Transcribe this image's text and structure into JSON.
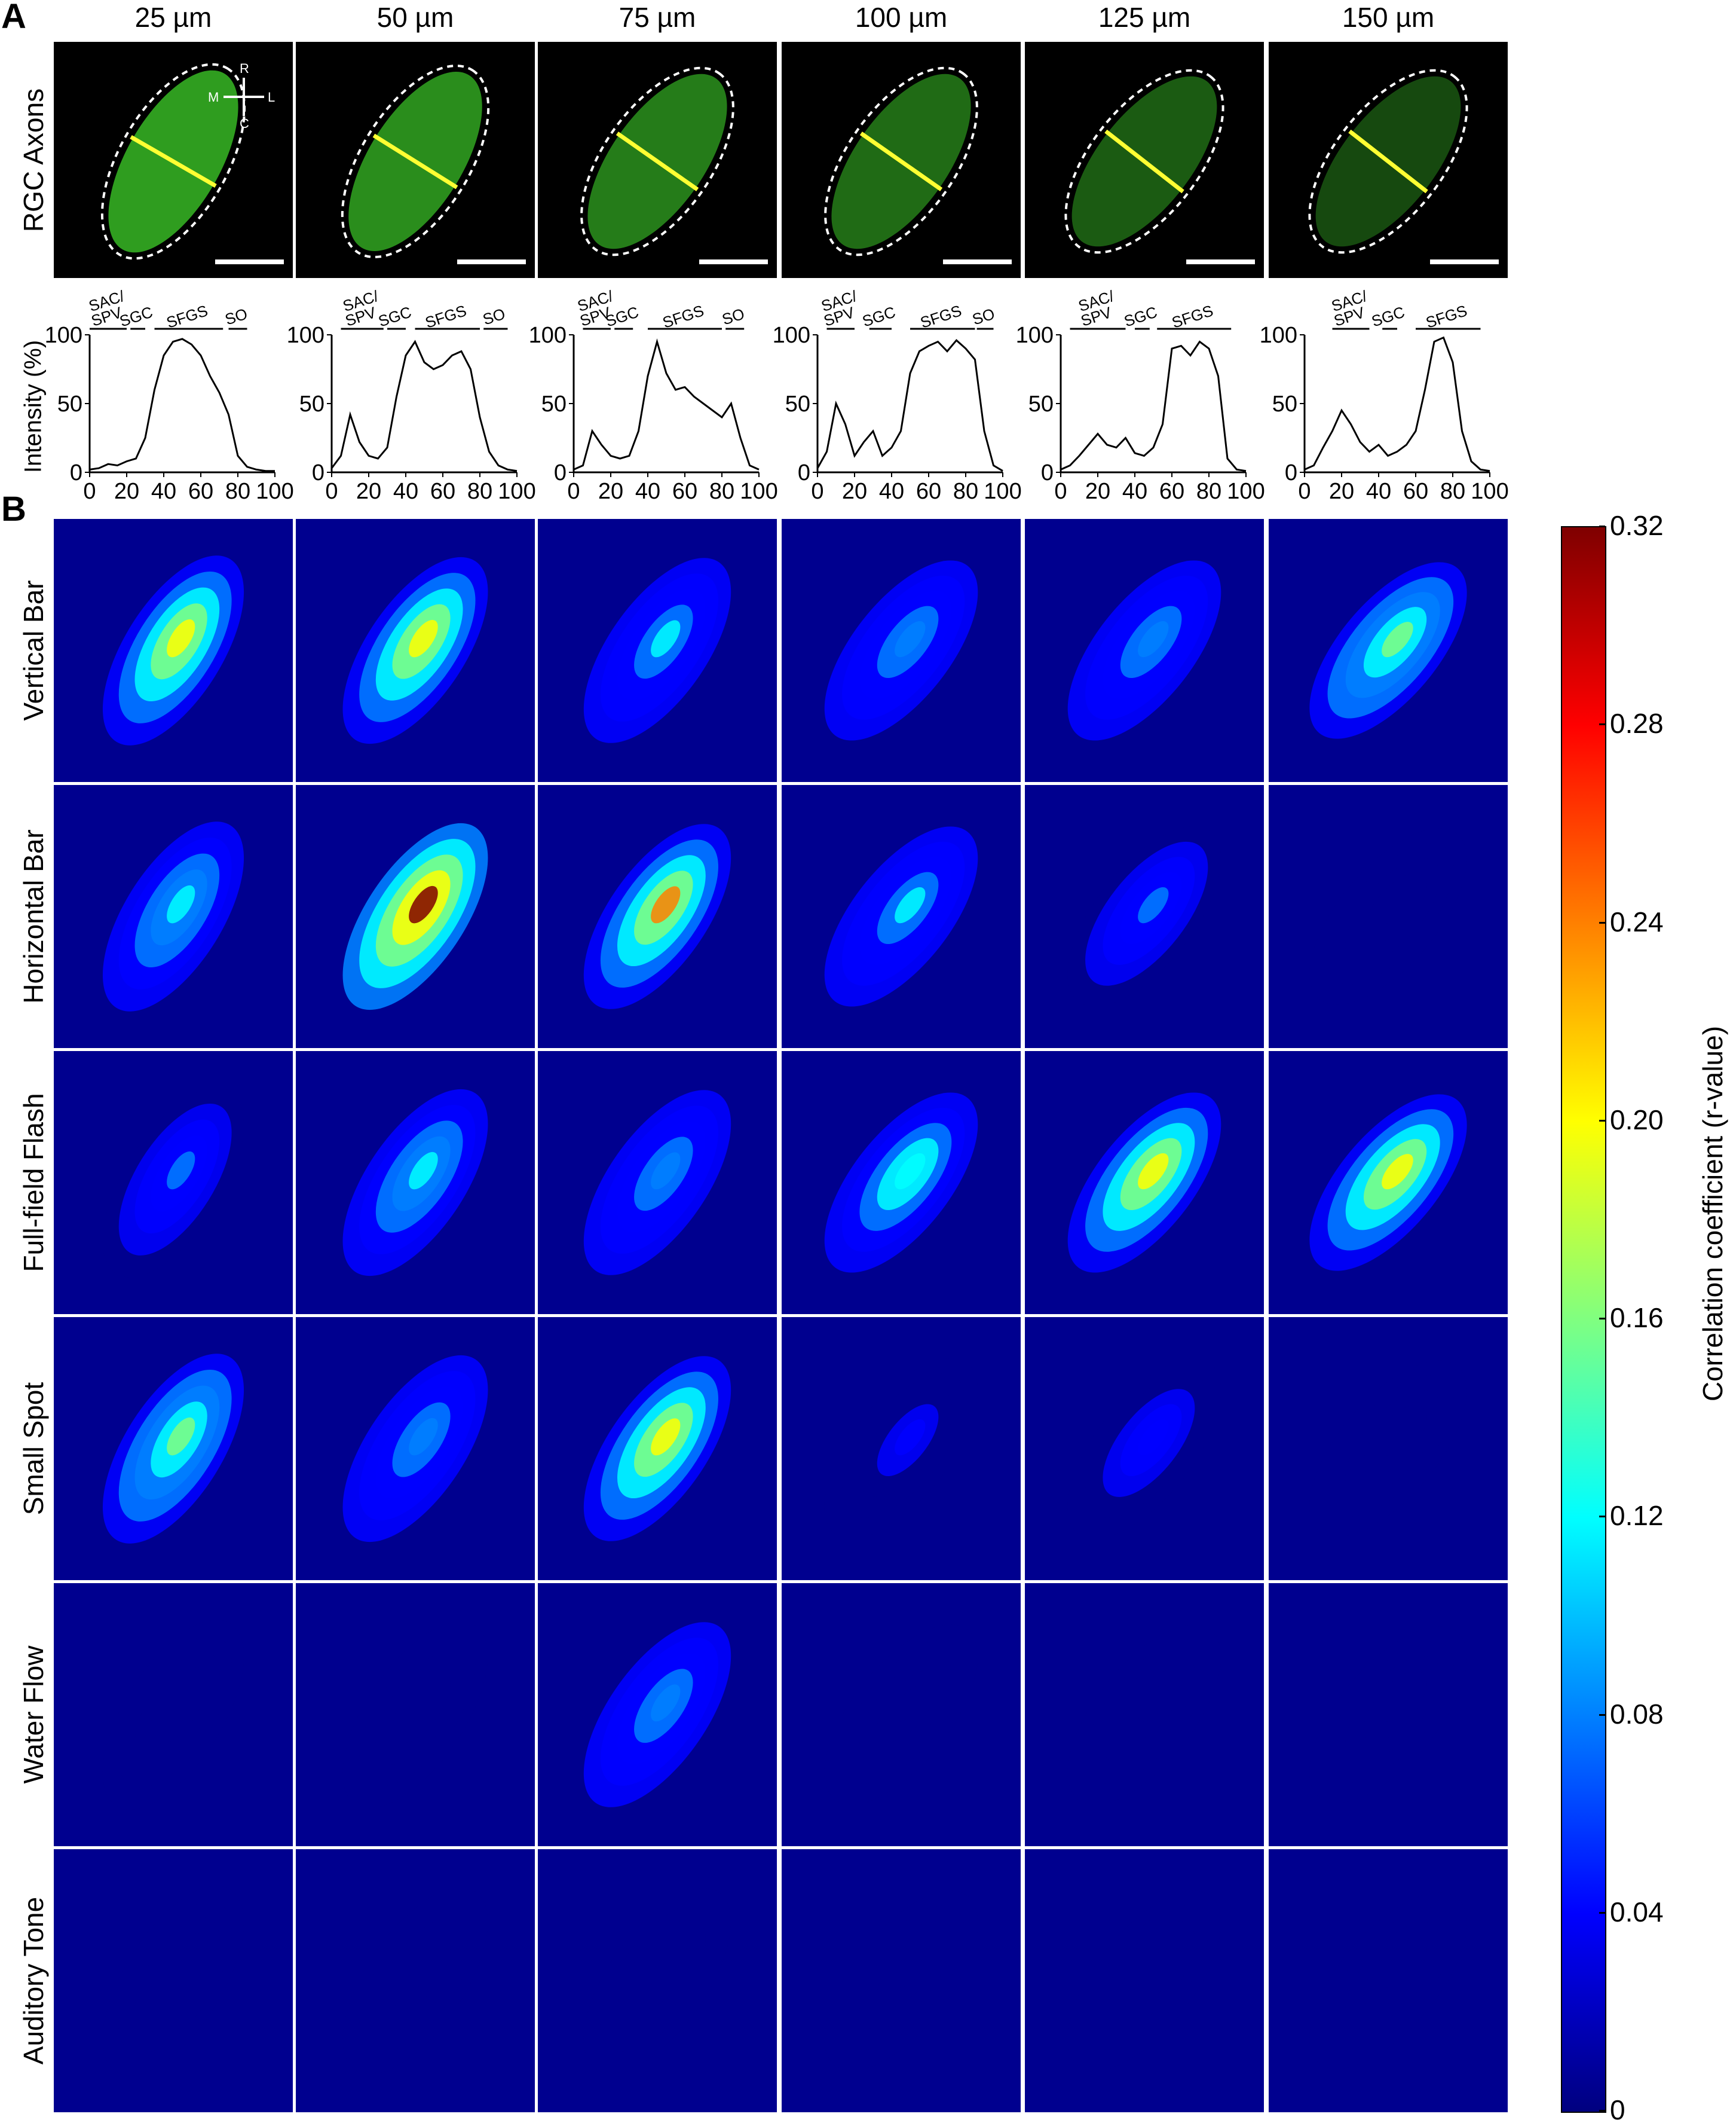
{
  "panel_a_label": "A",
  "panel_b_label": "B",
  "depths": [
    "25 µm",
    "50 µm",
    "75 µm",
    "100 µm",
    "125 µm",
    "150 µm"
  ],
  "row_a_label": "RGC Axons",
  "compass": {
    "rostral": "R",
    "caudal": "C",
    "medial": "M",
    "lateral": "L"
  },
  "layers": {
    "sac_spv": "SAC/\nSPV",
    "sgc": "SGC",
    "sfgs": "SFGS",
    "so": "SO"
  },
  "intensity_ylabel": "Intensity (%)",
  "stimuli": [
    "Vertical Bar",
    "Horizontal Bar",
    "Full-field Flash",
    "Small Spot",
    "Water Flow",
    "Auditory Tone"
  ],
  "colorbar": {
    "label": "Correlation coefficient (r-value)",
    "ticks": [
      "0.32",
      "0.28",
      "0.24",
      "0.20",
      "0.16",
      "0.12",
      "0.08",
      "0.04",
      "0"
    ],
    "colormap": "jet"
  },
  "colors": {
    "axon_green": "#3fd22a",
    "yellow_line": "#ffff33",
    "map_background": "#00008f"
  },
  "chart_data": {
    "type": "line",
    "xlabel": "",
    "ylabel": "Intensity (%)",
    "xlim": [
      0,
      100
    ],
    "ylim": [
      0,
      100
    ],
    "xticks": [
      0,
      20,
      40,
      60,
      80,
      100
    ],
    "yticks": [
      0,
      50,
      100
    ],
    "x": [
      0,
      5,
      10,
      15,
      20,
      25,
      30,
      35,
      40,
      45,
      50,
      55,
      60,
      65,
      70,
      75,
      80,
      85,
      90,
      95,
      100
    ],
    "series": [
      {
        "values": [
          2,
          3,
          6,
          5,
          8,
          10,
          25,
          60,
          85,
          95,
          97,
          93,
          85,
          70,
          58,
          42,
          12,
          4,
          2,
          1,
          1
        ]
      },
      {
        "values": [
          3,
          12,
          42,
          22,
          12,
          10,
          18,
          55,
          85,
          95,
          80,
          75,
          78,
          85,
          88,
          75,
          40,
          15,
          5,
          2,
          1
        ]
      },
      {
        "values": [
          2,
          5,
          30,
          20,
          12,
          10,
          12,
          30,
          70,
          95,
          72,
          60,
          62,
          55,
          50,
          45,
          40,
          50,
          25,
          5,
          2
        ]
      },
      {
        "values": [
          3,
          15,
          50,
          35,
          12,
          22,
          30,
          12,
          18,
          30,
          72,
          88,
          92,
          95,
          88,
          96,
          90,
          82,
          30,
          5,
          1
        ]
      },
      {
        "values": [
          2,
          5,
          12,
          20,
          28,
          20,
          18,
          25,
          14,
          12,
          18,
          35,
          90,
          92,
          85,
          95,
          90,
          70,
          10,
          2,
          1
        ]
      },
      {
        "values": [
          2,
          5,
          18,
          30,
          45,
          35,
          22,
          15,
          20,
          12,
          15,
          20,
          30,
          60,
          95,
          98,
          80,
          30,
          8,
          2,
          1
        ]
      }
    ]
  }
}
